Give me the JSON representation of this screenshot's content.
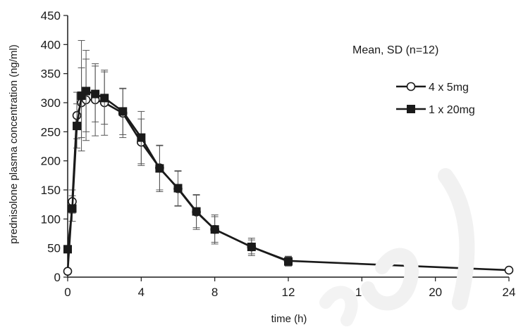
{
  "chart_data": {
    "type": "line",
    "title": "",
    "xlabel": "time (h)",
    "ylabel": "prednisolone plasma concentration (ng/ml)",
    "xlim": [
      0,
      24
    ],
    "ylim": [
      0,
      450
    ],
    "xticks": [
      0,
      4,
      8,
      12,
      16,
      20,
      24
    ],
    "yticks": [
      0,
      50,
      100,
      150,
      200,
      250,
      300,
      350,
      400,
      450
    ],
    "grid": false,
    "annotation": "Mean, SD (n=12)",
    "legend_position": "right",
    "series": [
      {
        "name": "4 x 5mg",
        "marker": "open-circle",
        "color": "#1a1a1a",
        "x": [
          0,
          0.25,
          0.5,
          0.75,
          1,
          1.5,
          2,
          3,
          4,
          5,
          6,
          7,
          8,
          10,
          12,
          24
        ],
        "y": [
          10,
          130,
          278,
          300,
          305,
          305,
          300,
          282,
          232,
          188,
          152,
          112,
          82,
          52,
          28,
          12
        ],
        "err": [
          0,
          20,
          40,
          60,
          70,
          62,
          56,
          42,
          40,
          38,
          30,
          30,
          22,
          15,
          8,
          0
        ]
      },
      {
        "name": "1 x 20mg",
        "marker": "filled-square",
        "color": "#1a1a1a",
        "x": [
          0,
          0.25,
          0.5,
          0.75,
          1,
          1.5,
          2,
          3,
          4,
          5,
          6,
          7,
          8,
          10,
          12
        ],
        "y": [
          48,
          118,
          260,
          312,
          320,
          315,
          308,
          285,
          240,
          187,
          153,
          113,
          82,
          52,
          27
        ],
        "err": [
          0,
          22,
          38,
          95,
          70,
          48,
          45,
          40,
          45,
          40,
          30,
          28,
          25,
          12,
          8
        ]
      }
    ]
  }
}
